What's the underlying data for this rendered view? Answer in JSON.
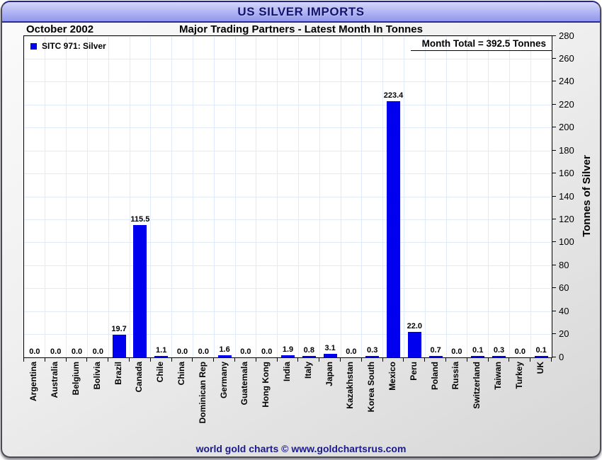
{
  "window": {
    "title": "US SILVER IMPORTS"
  },
  "header": {
    "date_label": "October 2002",
    "subtitle": "Major Trading Partners - Latest Month In Tonnes"
  },
  "legend": {
    "label": "SITC 971: Silver"
  },
  "annotations": {
    "month_total": "Month Total = 392.5 Tonnes"
  },
  "footer": {
    "credit": "world gold charts © www.goldchartsrus.com"
  },
  "colors": {
    "bar": "#0000ee",
    "grid": "#dfeafd",
    "title_text": "#14146e",
    "footer_text": "#1a1a8c",
    "titlebar_gradient_top": "#d4d7fa",
    "titlebar_gradient_bottom": "#9297ec"
  },
  "chart_data": {
    "type": "bar",
    "title": "US SILVER IMPORTS",
    "subtitle": "Major Trading Partners - Latest Month In Tonnes",
    "period": "October 2002",
    "series_name": "SITC 971: Silver",
    "categories": [
      "Argentina",
      "Australia",
      "Belgium",
      "Bolivia",
      "Brazil",
      "Canada",
      "Chile",
      "China",
      "Dominican Rep",
      "Germany",
      "Guatemala",
      "Hong Kong",
      "India",
      "Italy",
      "Japan",
      "Kazakhstan",
      "Korea South",
      "Mexico",
      "Peru",
      "Poland",
      "Russia",
      "Switzerland",
      "Taiwan",
      "Turkey",
      "UK"
    ],
    "values": [
      0.0,
      0.0,
      0.0,
      0.0,
      19.7,
      115.5,
      1.1,
      0.0,
      0.0,
      1.6,
      0.0,
      0.0,
      1.9,
      0.8,
      3.1,
      0.0,
      0.3,
      223.4,
      22.0,
      0.7,
      0.0,
      0.1,
      0.3,
      0.0,
      0.1
    ],
    "xlabel": "",
    "ylabel": "Tonnes of Silver",
    "ylim": [
      0,
      280
    ],
    "ytick_step": 20,
    "yticks": [
      0,
      20,
      40,
      60,
      80,
      100,
      120,
      140,
      160,
      180,
      200,
      220,
      240,
      260,
      280
    ],
    "bar_color": "#0000ee",
    "grid": true,
    "legend_position": "top-left",
    "value_labels_shown": true,
    "month_total": 392.5
  }
}
